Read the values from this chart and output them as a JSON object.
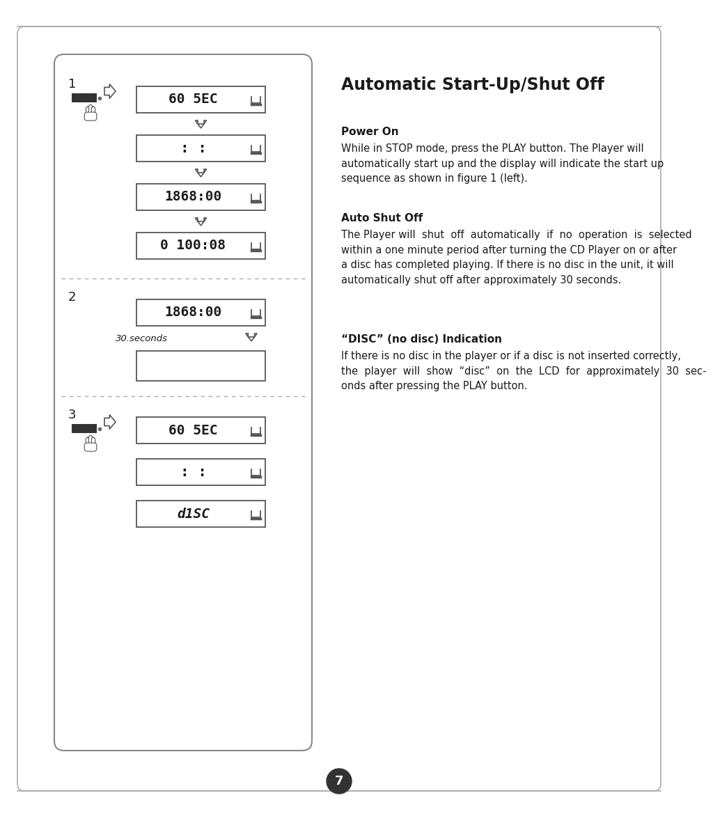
{
  "title": "Automatic Start-Up/Shut Off",
  "section1_heading": "Power On",
  "section1_text": "While in STOP mode, press the PLAY button. The Player will\nautomatically start up and the display will indicate the start up\nsequence as shown in figure 1 (left).",
  "section2_heading": "Auto Shut Off",
  "section2_text": "The Player will  shut  off  automatically  if  no  operation  is  selected\nwithin a one minute period after turning the CD Player on or after\na disc has completed playing. If there is no disc in the unit, it will\nautomatically shut off after approximately 30 seconds.",
  "section3_heading": "“DISC” (no disc) Indication",
  "section3_text": "If there is no disc in the player or if a disc is not inserted correctly,\nthe  player  will  show  “disc”  on  the  LCD  for  approximately  30  sec-\nonds after pressing the PLAY button.",
  "page_number": "7",
  "bg_color": "#ffffff",
  "text_color": "#1a1a1a",
  "panel_border": "#888888",
  "display_border": "#555555",
  "dash_color": "#aaaaaa",
  "outer_border": "#aaaaaa",
  "page_circle_color": "#333333",
  "button_color": "#333333"
}
